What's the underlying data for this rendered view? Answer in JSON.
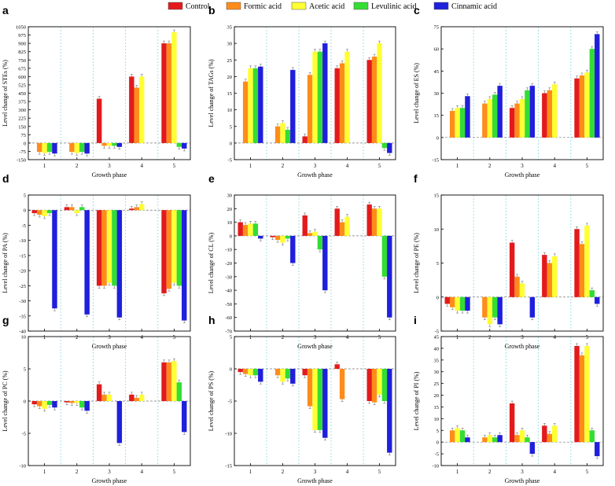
{
  "legend": [
    {
      "name": "Control",
      "color": "#e31a1c"
    },
    {
      "name": "Formic acid",
      "color": "#ff8c1a"
    },
    {
      "name": "Acetic acid",
      "color": "#ffff33"
    },
    {
      "name": "Levulinic acid",
      "color": "#33dd33"
    },
    {
      "name": "Cinnamic acid",
      "color": "#1f1fdd"
    }
  ],
  "chart_data": [
    {
      "panel": "a",
      "type": "bar",
      "title": "",
      "xlabel": "Growth phase",
      "ylabel": "Level change of STEs (%)",
      "categories": [
        "1",
        "2",
        "3",
        "4",
        "5"
      ],
      "ylim": [
        -150,
        1050
      ],
      "yticks": [
        -150,
        -75,
        0,
        75,
        150,
        225,
        300,
        375,
        450,
        525,
        600,
        675,
        750,
        825,
        900,
        975,
        1050
      ],
      "series": [
        {
          "name": "Control",
          "values": [
            0,
            0,
            400,
            600,
            900
          ]
        },
        {
          "name": "Formic acid",
          "values": [
            -80,
            -80,
            -25,
            500,
            900
          ]
        },
        {
          "name": "Acetic acid",
          "values": [
            -90,
            -90,
            -25,
            600,
            1000
          ]
        },
        {
          "name": "Levulinic acid",
          "values": [
            -80,
            -80,
            -25,
            0,
            -35
          ]
        },
        {
          "name": "Cinnamic acid",
          "values": [
            -95,
            -95,
            -35,
            0,
            -50
          ]
        }
      ]
    },
    {
      "panel": "b",
      "type": "bar",
      "title": "",
      "xlabel": "Growth phase",
      "ylabel": "Level change of TAGs (%)",
      "categories": [
        "1",
        "2",
        "3",
        "4",
        "5"
      ],
      "ylim": [
        -5,
        35
      ],
      "yticks": [
        -5,
        0,
        5,
        10,
        15,
        20,
        25,
        30,
        35
      ],
      "series": [
        {
          "name": "Control",
          "values": [
            0,
            0,
            2,
            22.5,
            25
          ]
        },
        {
          "name": "Formic acid",
          "values": [
            18.5,
            5,
            20.5,
            24,
            26
          ]
        },
        {
          "name": "Acetic acid",
          "values": [
            22.5,
            6,
            27.5,
            27.5,
            30
          ]
        },
        {
          "name": "Levulinic acid",
          "values": [
            22.5,
            4,
            27.5,
            0,
            -1.5
          ]
        },
        {
          "name": "Cinnamic acid",
          "values": [
            23,
            22,
            30,
            0,
            -3
          ]
        }
      ]
    },
    {
      "panel": "c",
      "type": "bar",
      "title": "",
      "xlabel": "Growth phase",
      "ylabel": "Level change of ES (%)",
      "categories": [
        "1",
        "2",
        "3",
        "4",
        "5"
      ],
      "ylim": [
        -15,
        75
      ],
      "yticks": [
        -15,
        0,
        15,
        30,
        45,
        60,
        75
      ],
      "series": [
        {
          "name": "Control",
          "values": [
            0,
            0,
            20,
            30,
            40
          ]
        },
        {
          "name": "Formic acid",
          "values": [
            18,
            23,
            23,
            32,
            42
          ]
        },
        {
          "name": "Acetic acid",
          "values": [
            20,
            26,
            26,
            36,
            44
          ]
        },
        {
          "name": "Levulinic acid",
          "values": [
            20,
            29,
            32,
            0,
            60
          ]
        },
        {
          "name": "Cinnamic acid",
          "values": [
            28,
            35,
            35,
            0,
            70
          ]
        }
      ]
    },
    {
      "panel": "d",
      "type": "bar",
      "title": "",
      "xlabel": "Growth phase",
      "ylabel": "Level change of PA (%)",
      "categories": [
        "1",
        "2",
        "3",
        "4",
        "5"
      ],
      "ylim": [
        -40,
        5
      ],
      "yticks": [
        -40,
        -35,
        -30,
        -25,
        -20,
        -15,
        -10,
        -5,
        0,
        5
      ],
      "series": [
        {
          "name": "Control",
          "values": [
            -1,
            1,
            -25,
            0.5,
            -27.5
          ]
        },
        {
          "name": "Formic acid",
          "values": [
            -1.5,
            1,
            -25,
            1,
            -26
          ]
        },
        {
          "name": "Acetic acid",
          "values": [
            -2,
            -1,
            -24,
            2,
            -24
          ]
        },
        {
          "name": "Levulinic acid",
          "values": [
            -1,
            1,
            -25,
            0,
            -25
          ]
        },
        {
          "name": "Cinnamic acid",
          "values": [
            -32.5,
            -34.5,
            -35.5,
            0,
            -36.5
          ]
        }
      ]
    },
    {
      "panel": "e",
      "type": "bar",
      "title": "",
      "xlabel": "Growth phase",
      "ylabel": "Level change of CL (%)",
      "categories": [
        "1",
        "2",
        "3",
        "4",
        "5"
      ],
      "ylim": [
        -70,
        30
      ],
      "yticks": [
        -70,
        -60,
        -50,
        -40,
        -30,
        -20,
        -10,
        0,
        10,
        20,
        30
      ],
      "series": [
        {
          "name": "Control",
          "values": [
            10,
            -1,
            15,
            20,
            23
          ]
        },
        {
          "name": "Formic acid",
          "values": [
            8,
            -3,
            2,
            10,
            20
          ]
        },
        {
          "name": "Acetic acid",
          "values": [
            9,
            -5,
            3,
            14,
            20
          ]
        },
        {
          "name": "Levulinic acid",
          "values": [
            9,
            -2,
            -10,
            0,
            -30
          ]
        },
        {
          "name": "Cinnamic acid",
          "values": [
            -2,
            -20,
            -40,
            0,
            -60
          ]
        }
      ]
    },
    {
      "panel": "f",
      "type": "bar",
      "title": "",
      "xlabel": "Growth phase",
      "ylabel": "Level change of PE (%)",
      "categories": [
        "1",
        "2",
        "3",
        "4",
        "5"
      ],
      "ylim": [
        -5,
        15
      ],
      "yticks": [
        -5,
        0,
        5,
        10,
        15
      ],
      "series": [
        {
          "name": "Control",
          "values": [
            -1,
            0,
            8,
            6.2,
            10
          ]
        },
        {
          "name": "Formic acid",
          "values": [
            -1.5,
            -3,
            3,
            5,
            7.8
          ]
        },
        {
          "name": "Acetic acid",
          "values": [
            -2,
            -4,
            2,
            6,
            10.5
          ]
        },
        {
          "name": "Levulinic acid",
          "values": [
            -2,
            -3,
            0,
            0,
            1
          ]
        },
        {
          "name": "Cinnamic acid",
          "values": [
            -2,
            -4,
            -3,
            0,
            -1
          ]
        }
      ]
    },
    {
      "panel": "g",
      "type": "bar",
      "title": "",
      "xlabel": "Growth phase",
      "ylabel": "Level change of PC (%)",
      "categories": [
        "1",
        "2",
        "3",
        "4",
        "5"
      ],
      "ylim": [
        -10,
        10
      ],
      "yticks": [
        -10,
        -5,
        0,
        5,
        10
      ],
      "series": [
        {
          "name": "Control",
          "values": [
            -0.5,
            -0.2,
            2.6,
            1,
            6
          ]
        },
        {
          "name": "Formic acid",
          "values": [
            -0.8,
            -0.3,
            1,
            0.5,
            6
          ]
        },
        {
          "name": "Acetic acid",
          "values": [
            -1.2,
            -0.3,
            1,
            1,
            6.2
          ]
        },
        {
          "name": "Levulinic acid",
          "values": [
            -0.6,
            -1,
            0,
            0,
            2.9
          ]
        },
        {
          "name": "Cinnamic acid",
          "values": [
            -1,
            -1.5,
            -6.5,
            0,
            -4.8
          ]
        }
      ]
    },
    {
      "panel": "h",
      "type": "bar",
      "title": "",
      "xlabel": "Growth phase",
      "ylabel": "Level change of PS (%)",
      "categories": [
        "1",
        "2",
        "3",
        "4",
        "5"
      ],
      "ylim": [
        -15,
        5
      ],
      "yticks": [
        -15,
        -10,
        -5,
        0,
        5
      ],
      "series": [
        {
          "name": "Control",
          "values": [
            -0.5,
            0,
            -1,
            0.7,
            -5
          ]
        },
        {
          "name": "Formic acid",
          "values": [
            -0.8,
            -1,
            -5.8,
            -4.7,
            -5.2
          ]
        },
        {
          "name": "Acetic acid",
          "values": [
            -1,
            -2,
            -9.5,
            0,
            -4
          ]
        },
        {
          "name": "Levulinic acid",
          "values": [
            -1,
            -1.5,
            -9.5,
            0,
            -5
          ]
        },
        {
          "name": "Cinnamic acid",
          "values": [
            -2,
            -2.3,
            -10.7,
            0,
            -13
          ]
        }
      ]
    },
    {
      "panel": "i",
      "type": "bar",
      "title": "",
      "xlabel": "Growth phase",
      "ylabel": "Level change of PI (%)",
      "categories": [
        "1",
        "2",
        "3",
        "4",
        "5"
      ],
      "ylim": [
        -10,
        45
      ],
      "yticks": [
        -10,
        -5,
        0,
        5,
        10,
        15,
        20,
        25,
        30,
        35,
        40,
        45
      ],
      "series": [
        {
          "name": "Control",
          "values": [
            0,
            0,
            16.5,
            7,
            41
          ]
        },
        {
          "name": "Formic acid",
          "values": [
            5,
            2,
            3,
            3.5,
            37
          ]
        },
        {
          "name": "Acetic acid",
          "values": [
            6,
            3,
            5,
            7,
            41
          ]
        },
        {
          "name": "Levulinic acid",
          "values": [
            5,
            2,
            2,
            0,
            5
          ]
        },
        {
          "name": "Cinnamic acid",
          "values": [
            2,
            3,
            -5,
            0,
            -6
          ]
        }
      ]
    }
  ]
}
